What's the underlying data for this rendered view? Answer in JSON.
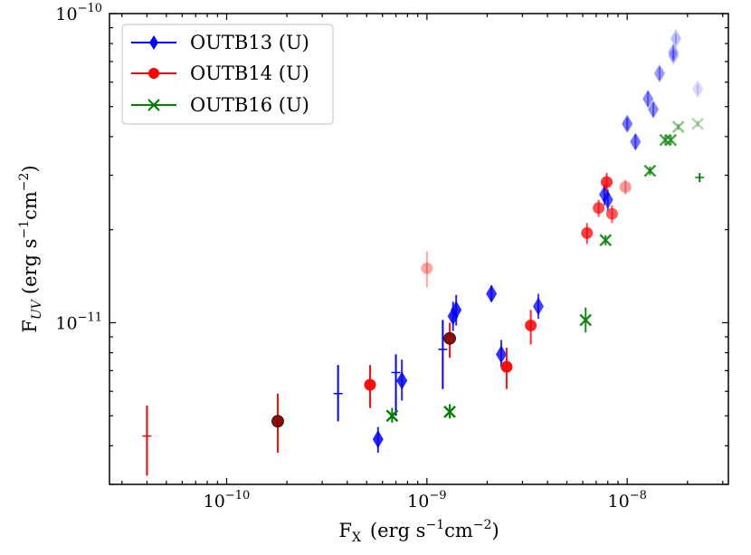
{
  "chart_data": {
    "type": "scatter",
    "title": "",
    "xlabel": "F_X (erg s^-1 cm^-2)",
    "ylabel": "F_UV (erg s^-1 cm^-2)",
    "xscale": "log",
    "yscale": "log",
    "xlim": [
      2.6e-11,
      3.2e-08
    ],
    "ylim": [
      3e-12,
      1e-10
    ],
    "x_ticks": [
      {
        "value": 1e-10,
        "base": "10",
        "exp": "−10"
      },
      {
        "value": 1e-09,
        "base": "10",
        "exp": "−9"
      },
      {
        "value": 1e-08,
        "base": "10",
        "exp": "−8"
      }
    ],
    "y_ticks": [
      {
        "value": 1e-11,
        "base": "10",
        "exp": "−11"
      },
      {
        "value": 1e-10,
        "base": "10",
        "exp": "−10"
      }
    ],
    "x_label_parts": {
      "main": "F",
      "sub": "X",
      "units": "(erg s",
      "exp1": "−1",
      "mid": "cm",
      "exp2": "−2",
      "end": ")"
    },
    "y_label_parts": {
      "main": "F",
      "sub": "UV",
      "units": "(erg s",
      "exp1": "−1",
      "mid": "cm",
      "exp2": "−2",
      "end": ")"
    },
    "legend": {
      "position": "top-left"
    },
    "series": [
      {
        "name": "OUTB13 (U)",
        "marker": "diamond",
        "color": "#0000ff",
        "points": [
          {
            "x": 3.6e-10,
            "y": 5.9e-12,
            "lo": 4.8e-12,
            "hi": 7.3e-12,
            "marker": false,
            "shade": 1.0
          },
          {
            "x": 5.7e-10,
            "y": 4.2e-12,
            "lo": 3.8e-12,
            "hi": 4.6e-12,
            "shade": 0.85
          },
          {
            "x": 7e-10,
            "y": 6.9e-12,
            "lo": 5e-12,
            "hi": 7.9e-12,
            "marker": false,
            "shade": 1.0
          },
          {
            "x": 7.5e-10,
            "y": 6.5e-12,
            "lo": 5.6e-12,
            "hi": 7.6e-12,
            "shade": 0.85
          },
          {
            "x": 1.2e-09,
            "y": 8.2e-12,
            "lo": 6.1e-12,
            "hi": 1.02e-11,
            "marker": false,
            "shade": 1.0
          },
          {
            "x": 1.35e-09,
            "y": 1.05e-11,
            "lo": 9.4e-12,
            "hi": 1.17e-11,
            "shade": 0.85
          },
          {
            "x": 1.4e-09,
            "y": 1.1e-11,
            "lo": 9.8e-12,
            "hi": 1.23e-11,
            "shade": 0.85
          },
          {
            "x": 2.1e-09,
            "y": 1.24e-11,
            "lo": 1.17e-11,
            "hi": 1.32e-11,
            "shade": 0.8
          },
          {
            "x": 2.35e-09,
            "y": 7.9e-12,
            "lo": 7.2e-12,
            "hi": 8.8e-12,
            "shade": 0.8
          },
          {
            "x": 3.6e-09,
            "y": 1.13e-11,
            "lo": 1.03e-11,
            "hi": 1.24e-11,
            "shade": 0.75
          },
          {
            "x": 7.7e-09,
            "y": 2.6e-11,
            "lo": 2.4e-11,
            "hi": 2.8e-11,
            "shade": 0.7
          },
          {
            "x": 8e-09,
            "y": 2.5e-11,
            "lo": 2.3e-11,
            "hi": 2.7e-11,
            "shade": 0.7
          },
          {
            "x": 1e-08,
            "y": 4.4e-11,
            "lo": 4.2e-11,
            "hi": 4.6e-11,
            "shade": 0.55
          },
          {
            "x": 1.1e-08,
            "y": 3.85e-11,
            "lo": 3.65e-11,
            "hi": 4.05e-11,
            "shade": 0.55
          },
          {
            "x": 1.27e-08,
            "y": 5.3e-11,
            "lo": 5e-11,
            "hi": 5.6e-11,
            "shade": 0.45
          },
          {
            "x": 1.35e-08,
            "y": 4.9e-11,
            "lo": 4.65e-11,
            "hi": 5.15e-11,
            "shade": 0.45
          },
          {
            "x": 1.45e-08,
            "y": 6.4e-11,
            "lo": 6.1e-11,
            "hi": 6.7e-11,
            "shade": 0.4
          },
          {
            "x": 1.7e-08,
            "y": 7.5e-11,
            "lo": 7.1e-11,
            "hi": 7.9e-11,
            "shade": 0.3
          },
          {
            "x": 1.75e-08,
            "y": 8.3e-11,
            "lo": 8e-11,
            "hi": 8.6e-11,
            "shade": 0.25
          },
          {
            "x": 1.7e-08,
            "y": 7.3e-11,
            "lo": 7e-11,
            "hi": 7.6e-11,
            "shade": 0.25
          },
          {
            "x": 2.25e-08,
            "y": 5.7e-11,
            "lo": 5.5e-11,
            "hi": 5.9e-11,
            "shade": 0.15
          }
        ]
      },
      {
        "name": "OUTB14 (U)",
        "marker": "circle",
        "color": "#ff0000",
        "points": [
          {
            "x": 4e-11,
            "y": 4.3e-12,
            "lo": 3.2e-12,
            "hi": 5.4e-12,
            "marker": false,
            "shade": 1.0
          },
          {
            "x": 1.8e-10,
            "y": 4.8e-12,
            "lo": 3.8e-12,
            "hi": 5.9e-12,
            "shade": 0.95,
            "dark": true
          },
          {
            "x": 5.2e-10,
            "y": 6.3e-12,
            "lo": 5.3e-12,
            "hi": 7.3e-12,
            "shade": 0.95
          },
          {
            "x": 1e-09,
            "y": 1.5e-11,
            "lo": 1.3e-11,
            "hi": 1.7e-11,
            "shade": 0.35
          },
          {
            "x": 1.3e-09,
            "y": 8.9e-12,
            "lo": 7.7e-12,
            "hi": 1e-11,
            "shade": 0.95,
            "dark": true
          },
          {
            "x": 2.5e-09,
            "y": 7.2e-12,
            "lo": 6.1e-12,
            "hi": 8.3e-12,
            "shade": 0.95
          },
          {
            "x": 3.3e-09,
            "y": 9.8e-12,
            "lo": 8.5e-12,
            "hi": 1.1e-11,
            "shade": 0.85
          },
          {
            "x": 6.3e-09,
            "y": 1.95e-11,
            "lo": 1.8e-11,
            "hi": 2.1e-11,
            "shade": 0.75
          },
          {
            "x": 7.2e-09,
            "y": 2.35e-11,
            "lo": 2.2e-11,
            "hi": 2.5e-11,
            "shade": 0.7
          },
          {
            "x": 7.9e-09,
            "y": 2.85e-11,
            "lo": 2.65e-11,
            "hi": 3.05e-11,
            "shade": 0.8
          },
          {
            "x": 8.4e-09,
            "y": 2.25e-11,
            "lo": 2.1e-11,
            "hi": 2.4e-11,
            "shade": 0.65
          },
          {
            "x": 9.8e-09,
            "y": 2.75e-11,
            "lo": 2.6e-11,
            "hi": 2.9e-11,
            "shade": 0.4
          }
        ]
      },
      {
        "name": "OUTB16 (U)",
        "marker": "x",
        "color": "#008000",
        "points": [
          {
            "x": 6.7e-10,
            "y": 5e-12,
            "lo": 4.75e-12,
            "hi": 5.3e-12,
            "shade": 1.0
          },
          {
            "x": 1.3e-09,
            "y": 5.15e-12,
            "lo": 4.9e-12,
            "hi": 5.45e-12,
            "shade": 1.0
          },
          {
            "x": 6.2e-09,
            "y": 1.02e-11,
            "lo": 9.3e-12,
            "hi": 1.12e-11,
            "shade": 0.9
          },
          {
            "x": 7.8e-09,
            "y": 1.85e-11,
            "lo": 1.78e-11,
            "hi": 1.92e-11,
            "shade": 0.85
          },
          {
            "x": 1.3e-08,
            "y": 3.1e-11,
            "lo": 3e-11,
            "hi": 3.2e-11,
            "shade": 0.8
          },
          {
            "x": 1.55e-08,
            "y": 3.9e-11,
            "lo": 3.75e-11,
            "hi": 4.05e-11,
            "shade": 0.7
          },
          {
            "x": 1.65e-08,
            "y": 3.9e-11,
            "lo": 3.75e-11,
            "hi": 4.05e-11,
            "shade": 0.7
          },
          {
            "x": 1.8e-08,
            "y": 4.3e-11,
            "lo": 4.2e-11,
            "hi": 4.4e-11,
            "shade": 0.45
          },
          {
            "x": 2.25e-08,
            "y": 4.4e-11,
            "lo": 4.3e-11,
            "hi": 4.5e-11,
            "shade": 0.3
          },
          {
            "x": 2.3e-08,
            "y": 2.95e-11,
            "lo": 2.85e-11,
            "hi": 3.05e-11,
            "marker": false,
            "shade": 1.0
          }
        ]
      }
    ]
  }
}
